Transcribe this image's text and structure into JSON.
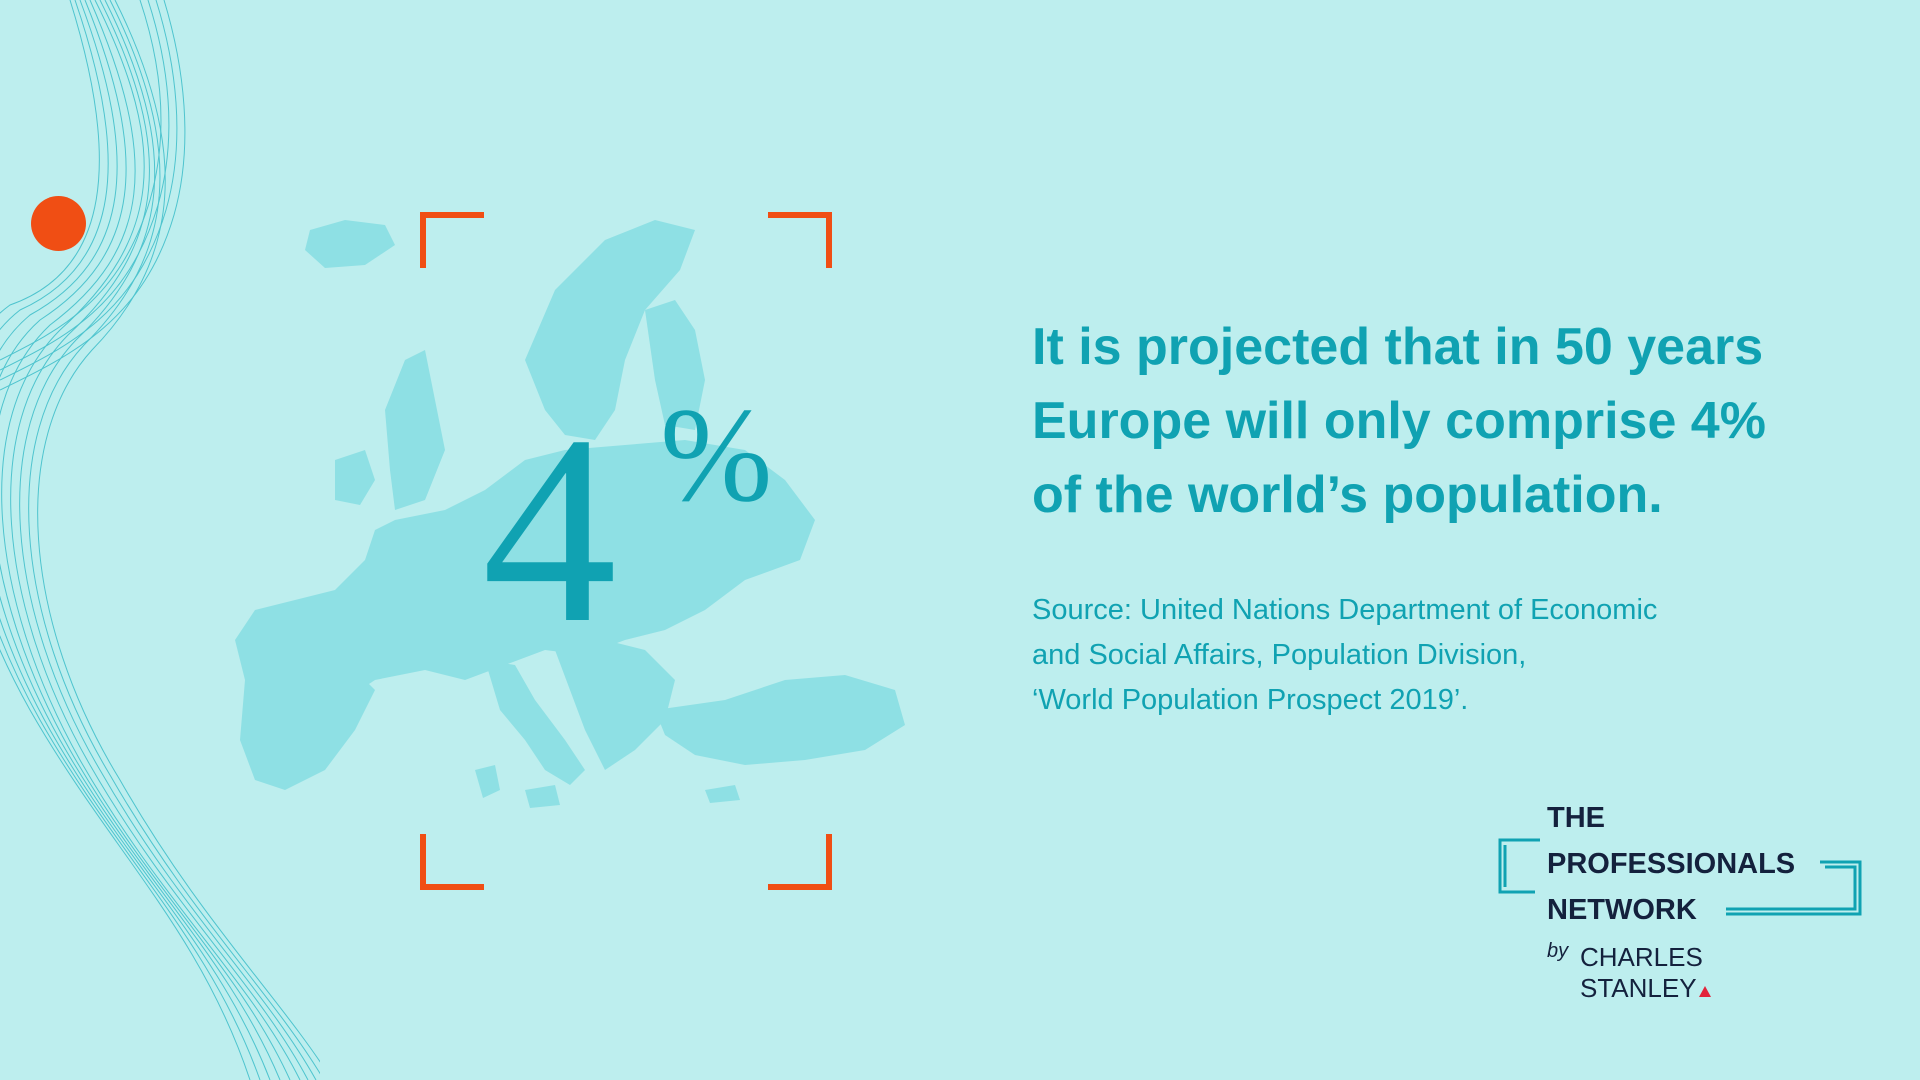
{
  "stat": {
    "number": "4",
    "percent_sign": "%"
  },
  "headline_lines": [
    "It is projected that in 50 years",
    "Europe will only comprise 4%",
    "of the world’s population."
  ],
  "source_lines": [
    "Source: United Nations Department of Economic",
    "and Social Affairs, Population Division,",
    "‘World Population Prospect 2019’."
  ],
  "logo": {
    "line1": "THE",
    "line2": "PROFESSIONALS",
    "line3": "NETWORK",
    "by": "by",
    "brand_line1": "CHARLES",
    "brand_line2": "STANLEY"
  },
  "colors": {
    "background": "#bdeeee",
    "accent_teal": "#10a2b2",
    "accent_orange": "#f04e14",
    "map_fill": "#8ee0e4",
    "logo_text": "#14213d"
  },
  "icons": [
    "europe-map-graphic",
    "wave-lines-decoration",
    "orange-dot",
    "focus-bracket-corners",
    "logo-frame"
  ]
}
